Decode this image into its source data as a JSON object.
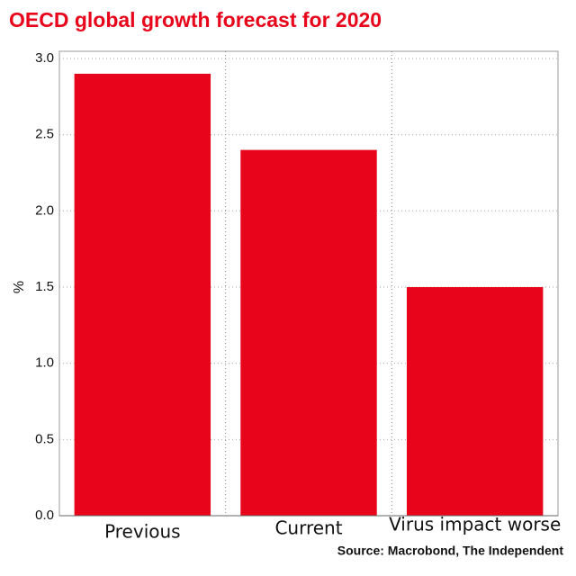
{
  "chart_data": {
    "type": "bar",
    "title": "OECD global growth forecast for 2020",
    "y_label": "%",
    "categories": [
      "Previous",
      "Current",
      "Virus impact worse"
    ],
    "values": [
      2.9,
      2.4,
      1.5
    ],
    "color": "#e8051c",
    "ylim": [
      0,
      3
    ],
    "yticks": [
      {
        "value": 0,
        "label": "0.0"
      },
      0.5,
      {
        "value": 1,
        "label": "1.0"
      },
      1.5,
      {
        "value": 2,
        "label": "2.0"
      },
      2.5,
      {
        "value": 3,
        "label": "3.0"
      }
    ],
    "grid": true,
    "source": "Source: Macrobond, The Independent"
  }
}
